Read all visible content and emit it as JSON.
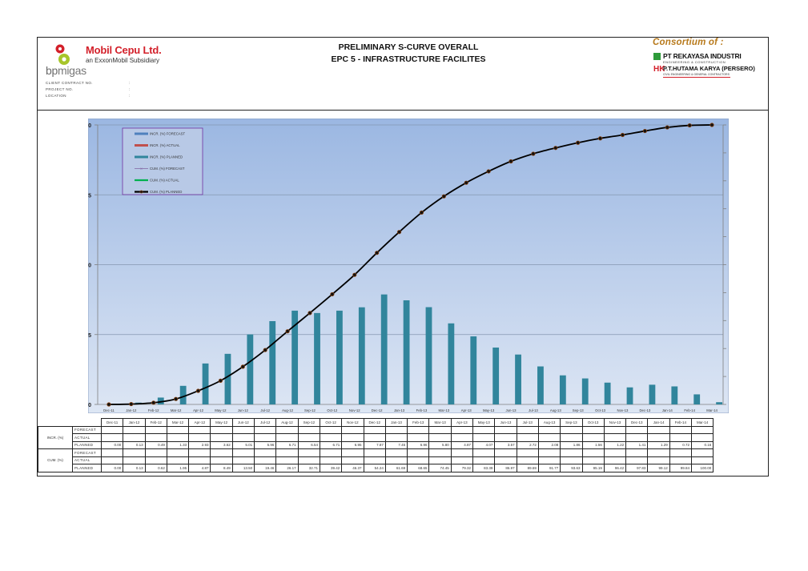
{
  "header": {
    "company_name": "Mobil Cepu Ltd.",
    "company_subtitle": "an ExxonMobil Subsidiary",
    "regulator_logo_text_a": "bp",
    "regulator_logo_text_b": "migas",
    "meta": [
      {
        "label": "CLIENT CONTRACT NO.",
        "value": ":"
      },
      {
        "label": "PROJECT NO.",
        "value": ":"
      },
      {
        "label": "LOCATION",
        "value": ":"
      }
    ],
    "title_line1": "PRELIMINARY S-CURVE OVERALL",
    "title_line2": "EPC 5  - INFRASTRUCTURE FACILITES",
    "consortium_label": "Consortium of :",
    "consortium_members": [
      {
        "name": "PT REKAYASA INDUSTRI",
        "sub": "ENGINEERING & CONSTRUCTION"
      },
      {
        "name": "P.T.HUTAMA KARYA (PERSERO)",
        "sub": "CIVIL ENGINEERING & GENERAL CONTRACTORS"
      }
    ],
    "hk_logo_text": "HK"
  },
  "colors": {
    "bar_planned": "#31859c",
    "bar_forecast": "#4f81bd",
    "bar_actual": "#c0504d",
    "cum_planned_line": "#000000",
    "cum_planned_marker": "#8b4513",
    "cum_forecast_line": "#8064a2",
    "cum_actual_line": "#00b050",
    "plot_bg_top": "#9bb7e2",
    "plot_bg_bottom": "#dde6f4",
    "legend_border": "#7030a0",
    "gridline": "#8497b0"
  },
  "chart_data": {
    "type": "bar+line",
    "title": "PRELIMINARY S-CURVE OVERALL - EPC 5 - INFRASTRUCTURE FACILITES",
    "categories": [
      "Dec-11",
      "Jan-12",
      "Feb-12",
      "Mar-12",
      "Apr-12",
      "May-12",
      "Jun-12",
      "Jul-12",
      "Aug-12",
      "Sep-12",
      "Oct-12",
      "Nov-12",
      "Dec-12",
      "Jan-13",
      "Feb-13",
      "Mar-13",
      "Apr-13",
      "May-13",
      "Jun-13",
      "Jul-13",
      "Aug-13",
      "Sep-13",
      "Oct-13",
      "Nov-13",
      "Dec-13",
      "Jan-14",
      "Feb-14",
      "Mar-14"
    ],
    "series": [
      {
        "name": "INCR. (%) FORECAST",
        "type": "bar",
        "axis": "left",
        "values": []
      },
      {
        "name": "INCR. (%) ACTUAL",
        "type": "bar",
        "axis": "left",
        "values": []
      },
      {
        "name": "INCR. (%) PLANNED",
        "type": "bar",
        "axis": "left",
        "values": [
          0.0,
          0.13,
          0.49,
          1.33,
          2.93,
          3.62,
          5.01,
          5.96,
          6.71,
          6.54,
          6.71,
          6.95,
          7.87,
          7.45,
          6.96,
          5.8,
          4.87,
          4.07,
          3.57,
          2.72,
          2.08,
          1.86,
          1.56,
          1.22,
          1.41,
          1.29,
          0.72,
          0.16
        ]
      },
      {
        "name": "CUM. (%) FORECAST",
        "type": "line",
        "axis": "right",
        "values": []
      },
      {
        "name": "CUM. (%) ACTUAL",
        "type": "line",
        "axis": "right",
        "values": []
      },
      {
        "name": "CUM. (%) PLANNED",
        "type": "line",
        "axis": "right",
        "values": [
          0.0,
          0.13,
          0.62,
          1.95,
          4.87,
          8.49,
          13.5,
          19.46,
          26.17,
          32.71,
          39.42,
          46.37,
          54.24,
          61.69,
          68.65,
          74.45,
          79.32,
          83.39,
          86.97,
          89.69,
          91.77,
          93.63,
          95.19,
          96.42,
          97.83,
          99.12,
          99.84,
          100.0
        ]
      }
    ],
    "left_axis": {
      "ylim": [
        0,
        20
      ],
      "ticks": [
        0,
        5,
        10,
        15,
        20
      ]
    },
    "right_axis": {
      "ylim": [
        0,
        100
      ],
      "ticks": [
        0,
        10,
        20,
        30,
        40,
        50,
        60,
        70,
        80,
        90,
        100
      ]
    },
    "xlabel": "",
    "ylabel": "",
    "grid": true,
    "legend_position": "top-left inside"
  },
  "table": {
    "groups": [
      {
        "label": "INCR. (%)",
        "rows": [
          {
            "label": "FORECAST",
            "values": []
          },
          {
            "label": "ACTUAL",
            "values": []
          },
          {
            "label": "PLANNED",
            "values": [
              "0.00",
              "0.13",
              "0.49",
              "1.33",
              "2.93",
              "3.62",
              "5.01",
              "5.96",
              "6.71",
              "6.54",
              "6.71",
              "6.95",
              "7.87",
              "7.45",
              "6.96",
              "5.80",
              "4.87",
              "4.07",
              "3.57",
              "2.72",
              "2.08",
              "1.86",
              "1.56",
              "1.22",
              "1.41",
              "1.29",
              "0.72",
              "0.16"
            ]
          }
        ]
      },
      {
        "label": "CUM. (%)",
        "rows": [
          {
            "label": "FORECAST",
            "values": []
          },
          {
            "label": "ACTUAL",
            "values": []
          },
          {
            "label": "PLANNED",
            "values": [
              "0.00",
              "0.13",
              "0.62",
              "1.95",
              "4.87",
              "8.49",
              "13.50",
              "19.46",
              "26.17",
              "32.71",
              "39.42",
              "46.37",
              "54.24",
              "61.69",
              "68.65",
              "74.45",
              "79.32",
              "83.39",
              "86.97",
              "89.69",
              "91.77",
              "93.63",
              "95.19",
              "96.42",
              "97.83",
              "99.12",
              "99.84",
              "100.00"
            ]
          }
        ]
      }
    ]
  }
}
